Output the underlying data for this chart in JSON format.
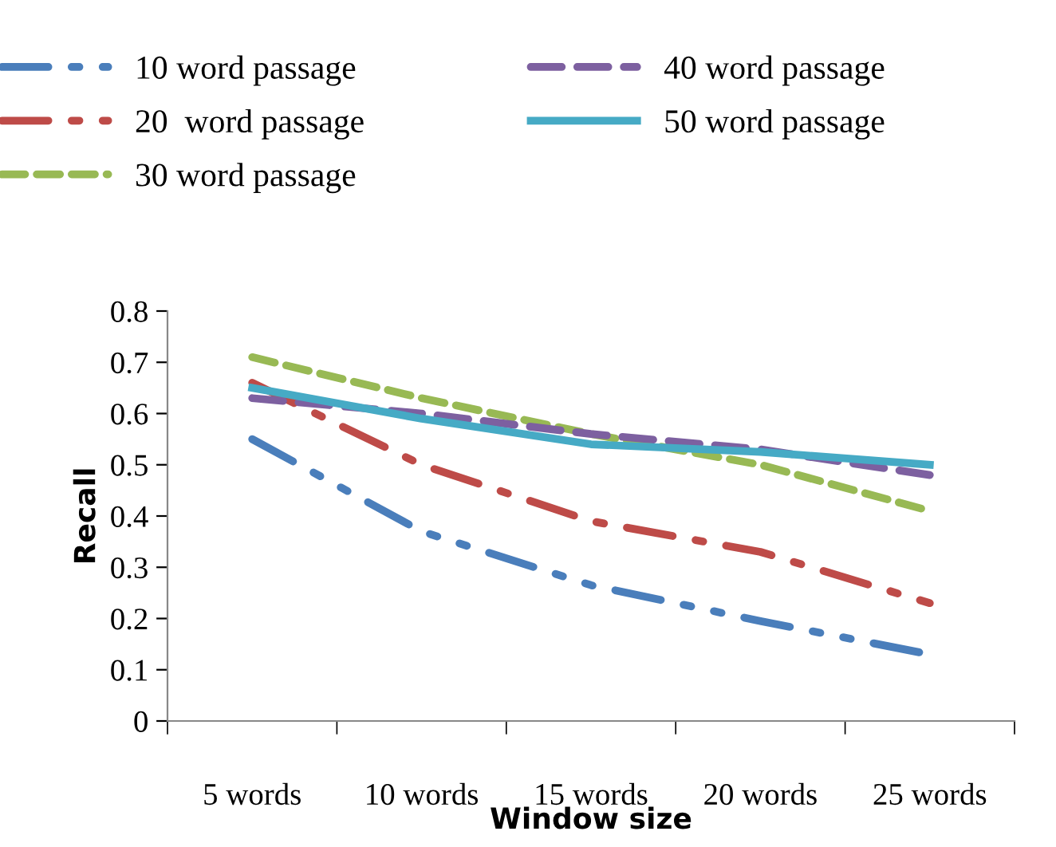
{
  "chart_data": {
    "type": "line",
    "xlabel": "Window size",
    "ylabel": "Recall",
    "categories": [
      "5 words",
      "10 words",
      "15 words",
      "20 words",
      "25 words"
    ],
    "series": [
      {
        "name": "10 word passage",
        "color": "#4a7ebb",
        "line_style": "dashdotdot",
        "values": [
          0.55,
          0.37,
          0.265,
          0.195,
          0.13
        ]
      },
      {
        "name": "20  word passage",
        "color": "#be4b48",
        "line_style": "dashdot",
        "values": [
          0.66,
          0.5,
          0.39,
          0.33,
          0.23
        ]
      },
      {
        "name": "30 word passage",
        "color": "#98b954",
        "line_style": "dashed",
        "values": [
          0.71,
          0.63,
          0.56,
          0.5,
          0.41
        ]
      },
      {
        "name": "40 word passage",
        "color": "#7d60a0",
        "line_style": "longdash",
        "values": [
          0.63,
          0.6,
          0.56,
          0.53,
          0.48
        ]
      },
      {
        "name": "50 word passage",
        "color": "#46aac5",
        "line_style": "solid",
        "values": [
          0.65,
          0.59,
          0.54,
          0.525,
          0.5
        ]
      }
    ],
    "ylim": [
      0,
      0.8
    ],
    "yticks": [
      0,
      0.1,
      0.2,
      0.3,
      0.4,
      0.5,
      0.6,
      0.7,
      0.8
    ],
    "grid": false,
    "legend": "top",
    "marker": "none"
  }
}
